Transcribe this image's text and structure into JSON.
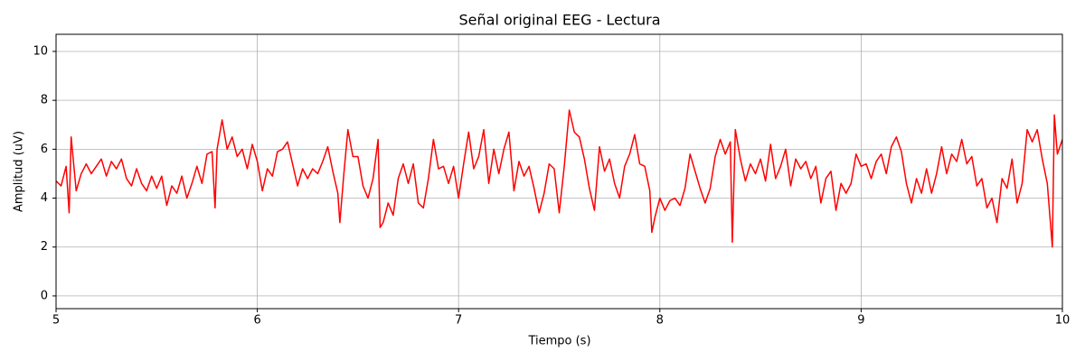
{
  "chart_data": {
    "type": "line",
    "title": "Señal original EEG - Lectura",
    "x_label": "Tiempo (s)",
    "y_label": "Amplitud (uV)",
    "xlim": [
      5,
      10
    ],
    "ylim": [
      -0.52,
      10.7
    ],
    "xticks": [
      5,
      6,
      7,
      8,
      9,
      10
    ],
    "yticks": [
      0,
      2,
      4,
      6,
      8,
      10
    ],
    "grid": true,
    "x": [
      5.0,
      5.025,
      5.05,
      5.065,
      5.075,
      5.1,
      5.125,
      5.15,
      5.175,
      5.2,
      5.225,
      5.25,
      5.275,
      5.3,
      5.325,
      5.35,
      5.375,
      5.4,
      5.425,
      5.45,
      5.475,
      5.5,
      5.525,
      5.55,
      5.575,
      5.6,
      5.625,
      5.65,
      5.675,
      5.7,
      5.725,
      5.75,
      5.775,
      5.79,
      5.8,
      5.825,
      5.85,
      5.875,
      5.9,
      5.925,
      5.95,
      5.975,
      6.0,
      6.025,
      6.05,
      6.075,
      6.1,
      6.125,
      6.15,
      6.175,
      6.2,
      6.225,
      6.25,
      6.275,
      6.3,
      6.325,
      6.35,
      6.375,
      6.4,
      6.41,
      6.43,
      6.45,
      6.475,
      6.5,
      6.525,
      6.55,
      6.575,
      6.6,
      6.61,
      6.625,
      6.65,
      6.675,
      6.7,
      6.725,
      6.75,
      6.775,
      6.8,
      6.825,
      6.85,
      6.875,
      6.9,
      6.925,
      6.95,
      6.975,
      7.0,
      7.025,
      7.05,
      7.075,
      7.1,
      7.125,
      7.15,
      7.175,
      7.2,
      7.225,
      7.25,
      7.275,
      7.3,
      7.325,
      7.35,
      7.375,
      7.4,
      7.425,
      7.45,
      7.475,
      7.5,
      7.525,
      7.55,
      7.575,
      7.6,
      7.625,
      7.65,
      7.675,
      7.7,
      7.725,
      7.75,
      7.775,
      7.8,
      7.825,
      7.85,
      7.875,
      7.9,
      7.925,
      7.95,
      7.96,
      7.975,
      8.0,
      8.025,
      8.05,
      8.075,
      8.1,
      8.125,
      8.15,
      8.175,
      8.2,
      8.225,
      8.25,
      8.275,
      8.3,
      8.325,
      8.35,
      8.36,
      8.375,
      8.4,
      8.425,
      8.45,
      8.475,
      8.5,
      8.525,
      8.55,
      8.575,
      8.6,
      8.625,
      8.65,
      8.675,
      8.7,
      8.725,
      8.75,
      8.775,
      8.8,
      8.825,
      8.85,
      8.875,
      8.9,
      8.925,
      8.95,
      8.975,
      9.0,
      9.025,
      9.05,
      9.075,
      9.1,
      9.125,
      9.15,
      9.175,
      9.2,
      9.225,
      9.25,
      9.275,
      9.3,
      9.325,
      9.35,
      9.375,
      9.4,
      9.425,
      9.45,
      9.475,
      9.5,
      9.525,
      9.55,
      9.575,
      9.6,
      9.625,
      9.65,
      9.675,
      9.7,
      9.725,
      9.75,
      9.775,
      9.8,
      9.825,
      9.85,
      9.875,
      9.9,
      9.925,
      9.95,
      9.96,
      9.975,
      10.0
    ],
    "series": [
      {
        "color": "#ff0000",
        "values": [
          4.7,
          4.5,
          5.3,
          3.4,
          6.5,
          4.3,
          5.0,
          5.4,
          5.0,
          5.3,
          5.6,
          4.9,
          5.5,
          5.2,
          5.6,
          4.8,
          4.5,
          5.2,
          4.6,
          4.3,
          4.9,
          4.4,
          4.9,
          3.7,
          4.5,
          4.2,
          4.9,
          4.0,
          4.6,
          5.3,
          4.6,
          5.8,
          5.9,
          3.6,
          6.0,
          7.2,
          6.0,
          6.5,
          5.7,
          6.0,
          5.2,
          6.2,
          5.5,
          4.3,
          5.2,
          4.9,
          5.9,
          6.0,
          6.3,
          5.4,
          4.5,
          5.2,
          4.8,
          5.2,
          5.0,
          5.5,
          6.1,
          5.1,
          4.2,
          3.0,
          5.0,
          6.8,
          5.7,
          5.7,
          4.5,
          4.0,
          4.8,
          6.4,
          2.8,
          3.0,
          3.8,
          3.3,
          4.8,
          5.4,
          4.6,
          5.4,
          3.8,
          3.6,
          4.8,
          6.4,
          5.2,
          5.3,
          4.6,
          5.3,
          4.0,
          5.4,
          6.7,
          5.2,
          5.7,
          6.8,
          4.6,
          6.0,
          5.0,
          6.0,
          6.7,
          4.3,
          5.5,
          4.9,
          5.3,
          4.4,
          3.4,
          4.2,
          5.4,
          5.2,
          3.4,
          5.3,
          7.6,
          6.7,
          6.5,
          5.6,
          4.4,
          3.5,
          6.1,
          5.1,
          5.6,
          4.6,
          4.0,
          5.3,
          5.8,
          6.6,
          5.4,
          5.3,
          4.3,
          2.6,
          3.2,
          4.0,
          3.5,
          3.9,
          4.0,
          3.7,
          4.4,
          5.8,
          5.1,
          4.4,
          3.8,
          4.4,
          5.7,
          6.4,
          5.8,
          6.3,
          2.2,
          6.8,
          5.6,
          4.7,
          5.4,
          5.0,
          5.6,
          4.7,
          6.2,
          4.8,
          5.3,
          6.0,
          4.5,
          5.6,
          5.2,
          5.5,
          4.8,
          5.3,
          3.8,
          4.8,
          5.1,
          3.5,
          4.6,
          4.2,
          4.6,
          5.8,
          5.3,
          5.4,
          4.8,
          5.5,
          5.8,
          5.0,
          6.1,
          6.5,
          5.9,
          4.6,
          3.8,
          4.8,
          4.2,
          5.2,
          4.2,
          5.0,
          6.1,
          5.0,
          5.8,
          5.5,
          6.4,
          5.4,
          5.7,
          4.5,
          4.8,
          3.6,
          4.0,
          3.0,
          4.8,
          4.4,
          5.6,
          3.8,
          4.6,
          6.8,
          6.3,
          6.8,
          5.6,
          4.6,
          2.0,
          7.4,
          5.8,
          6.4
        ]
      }
    ]
  }
}
